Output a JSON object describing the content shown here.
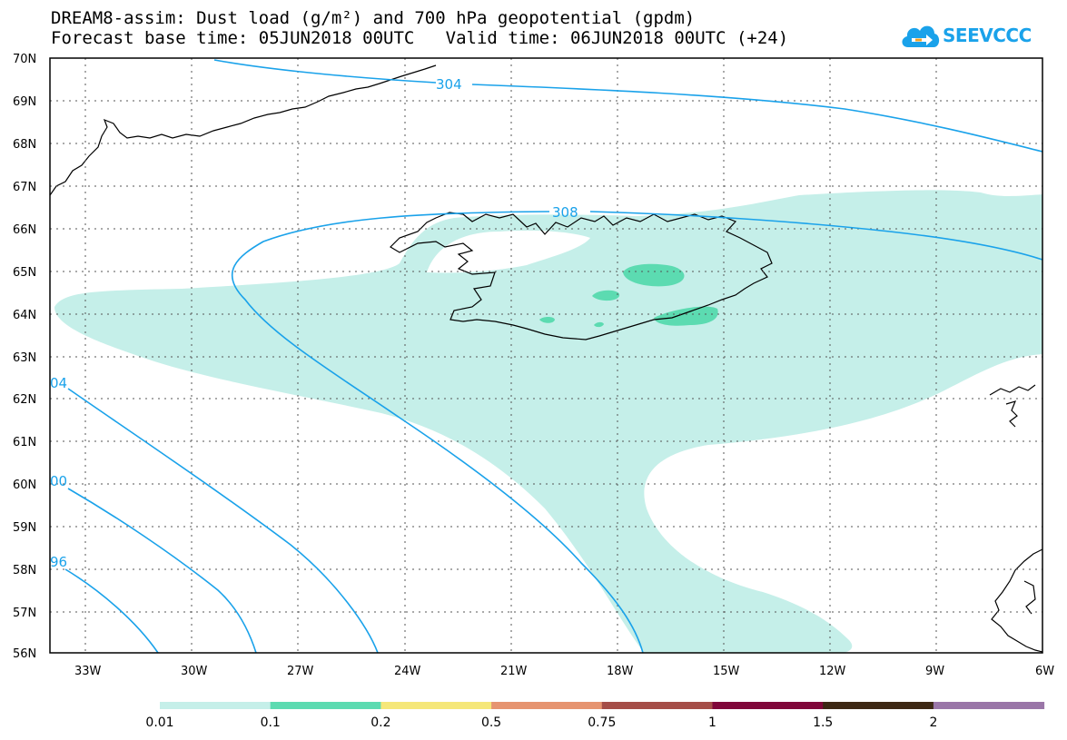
{
  "title": {
    "line1": "DREAM8-assim: Dust load (g/m²) and 700 hPa geopotential (gpdm)",
    "line2": "Forecast base time: 05JUN2018 00UTC   Valid time: 06JUN2018 00UTC (+24)"
  },
  "logo": {
    "text": "SEEVCCC",
    "icon": "cloud-icon"
  },
  "map": {
    "lon_range": [
      -34.0,
      -6.0
    ],
    "lat_range": [
      56.0,
      70.0
    ],
    "lat_ticks": [
      "70N",
      "69N",
      "68N",
      "67N",
      "66N",
      "65N",
      "64N",
      "63N",
      "62N",
      "61N",
      "60N",
      "59N",
      "58N",
      "57N",
      "56N"
    ],
    "lon_ticks": [
      "33W",
      "30W",
      "27W",
      "24W",
      "21W",
      "18W",
      "15W",
      "12W",
      "9W",
      "6W"
    ],
    "grid": "dotted",
    "contour_color": "#1aa2ea",
    "contour_labels": [
      "304",
      "308",
      "04",
      "00",
      "96"
    ]
  },
  "colorbar": {
    "labels": [
      "0.01",
      "0.1",
      "0.2",
      "0.5",
      "0.75",
      "1",
      "1.5",
      "2"
    ],
    "colors": [
      "#c5efe9",
      "#5cdbb1",
      "#f5e779",
      "#e69470",
      "#a54e48",
      "#80073a",
      "#3d2814",
      "#9a76a8"
    ]
  }
}
